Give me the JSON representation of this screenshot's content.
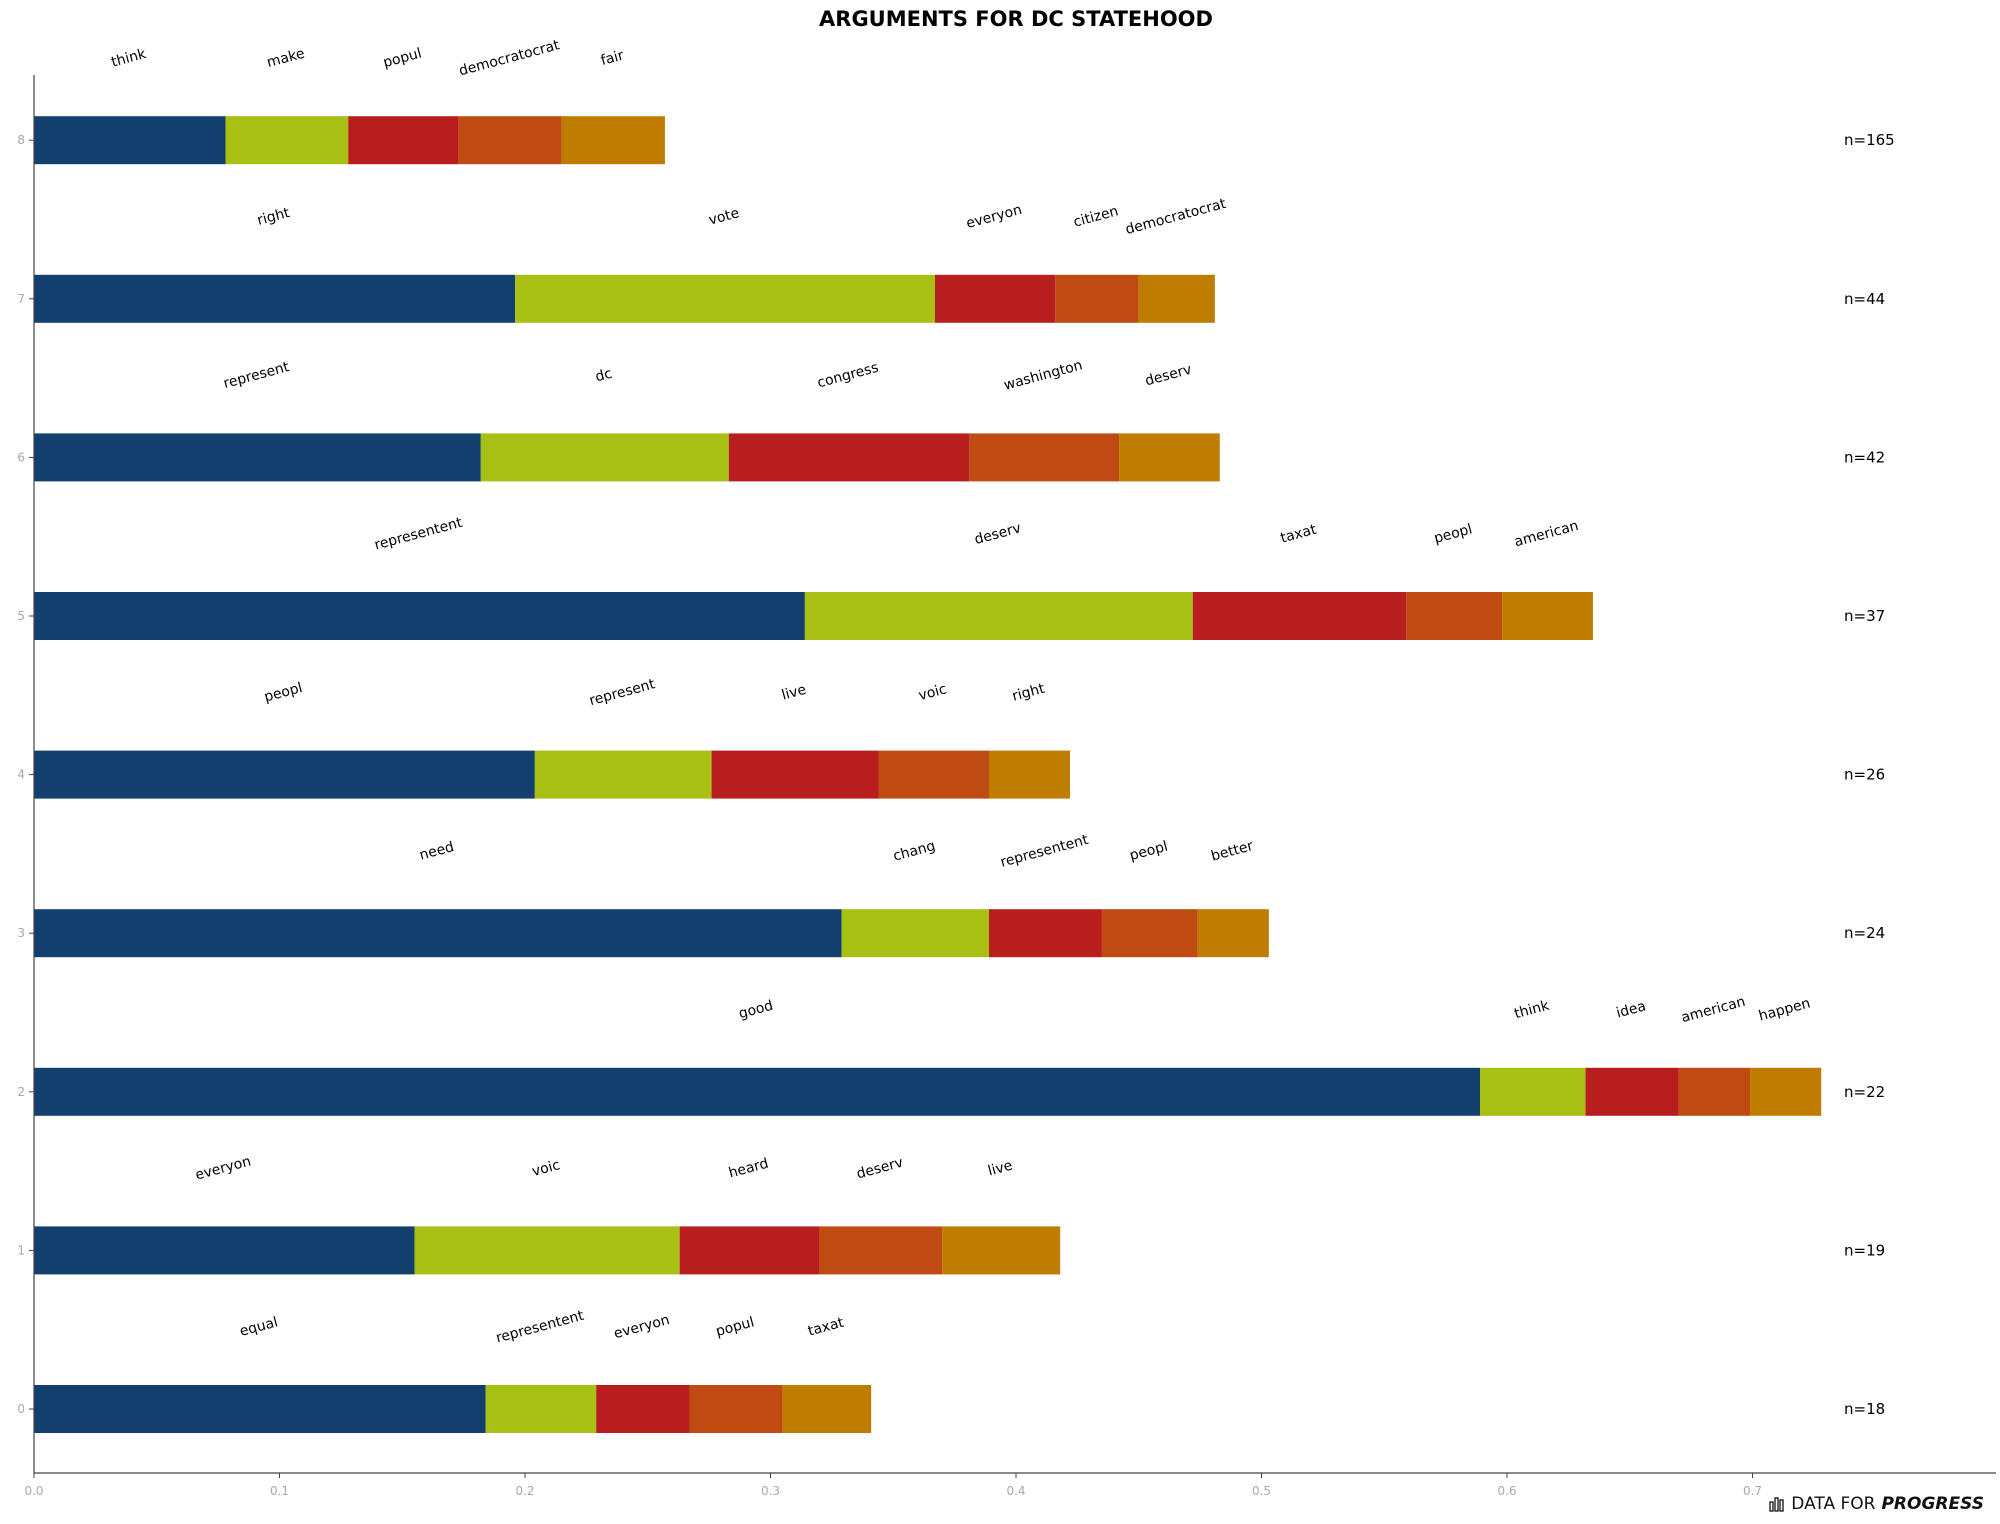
{
  "chart_data": {
    "type": "bar",
    "stacked": true,
    "orientation": "horizontal",
    "title": "ARGUMENTS FOR DC STATEHOOD",
    "xlim": [
      0,
      0.8
    ],
    "x_ticks": [
      "0.0",
      "0.1",
      "0.2",
      "0.3",
      "0.4",
      "0.5",
      "0.6",
      "0.7"
    ],
    "y_ticks": [
      "0",
      "1",
      "2",
      "3",
      "4",
      "5",
      "6",
      "7",
      "8"
    ],
    "colors": [
      "#133f6f",
      "#a8bf14",
      "#b81e1e",
      "#bf4b12",
      "#bf7d00"
    ],
    "categories": [
      {
        "y": "8",
        "n": "n=165",
        "words": [
          "think",
          "make",
          "popul",
          "democratocrat",
          "fair"
        ],
        "values": [
          0.078,
          0.05,
          0.045,
          0.042,
          0.042
        ]
      },
      {
        "y": "7",
        "n": "n=44",
        "words": [
          "right",
          "vote",
          "everyon",
          "citizen",
          "democratocrat"
        ],
        "values": [
          0.196,
          0.171,
          0.049,
          0.034,
          0.031
        ]
      },
      {
        "y": "6",
        "n": "n=42",
        "words": [
          "represent",
          "dc",
          "congress",
          "washington",
          "deserv"
        ],
        "values": [
          0.182,
          0.101,
          0.098,
          0.061,
          0.041
        ]
      },
      {
        "y": "5",
        "n": "n=37",
        "words": [
          "representent",
          "deserv",
          "taxat",
          "peopl",
          "american"
        ],
        "values": [
          0.314,
          0.158,
          0.087,
          0.039,
          0.037
        ]
      },
      {
        "y": "4",
        "n": "n=26",
        "words": [
          "peopl",
          "represent",
          "live",
          "voic",
          "right"
        ],
        "values": [
          0.204,
          0.072,
          0.068,
          0.045,
          0.033
        ]
      },
      {
        "y": "3",
        "n": "n=24",
        "words": [
          "need",
          "chang",
          "representent",
          "peopl",
          "better"
        ],
        "values": [
          0.329,
          0.06,
          0.046,
          0.039,
          0.029
        ]
      },
      {
        "y": "2",
        "n": "n=22",
        "words": [
          "good",
          "think",
          "idea",
          "american",
          "happen"
        ],
        "values": [
          0.589,
          0.043,
          0.038,
          0.029,
          0.029
        ]
      },
      {
        "y": "1",
        "n": "n=19",
        "words": [
          "everyon",
          "voic",
          "heard",
          "deserv",
          "live"
        ],
        "values": [
          0.155,
          0.108,
          0.057,
          0.05,
          0.048
        ]
      },
      {
        "y": "0",
        "n": "n=18",
        "words": [
          "equal",
          "representent",
          "everyon",
          "popul",
          "taxat"
        ],
        "values": [
          0.184,
          0.045,
          0.038,
          0.038,
          0.036
        ]
      }
    ]
  },
  "brand": {
    "prefix": "DATA FOR",
    "name": "PROGRESS",
    "icon": "bar-chart-icon"
  }
}
